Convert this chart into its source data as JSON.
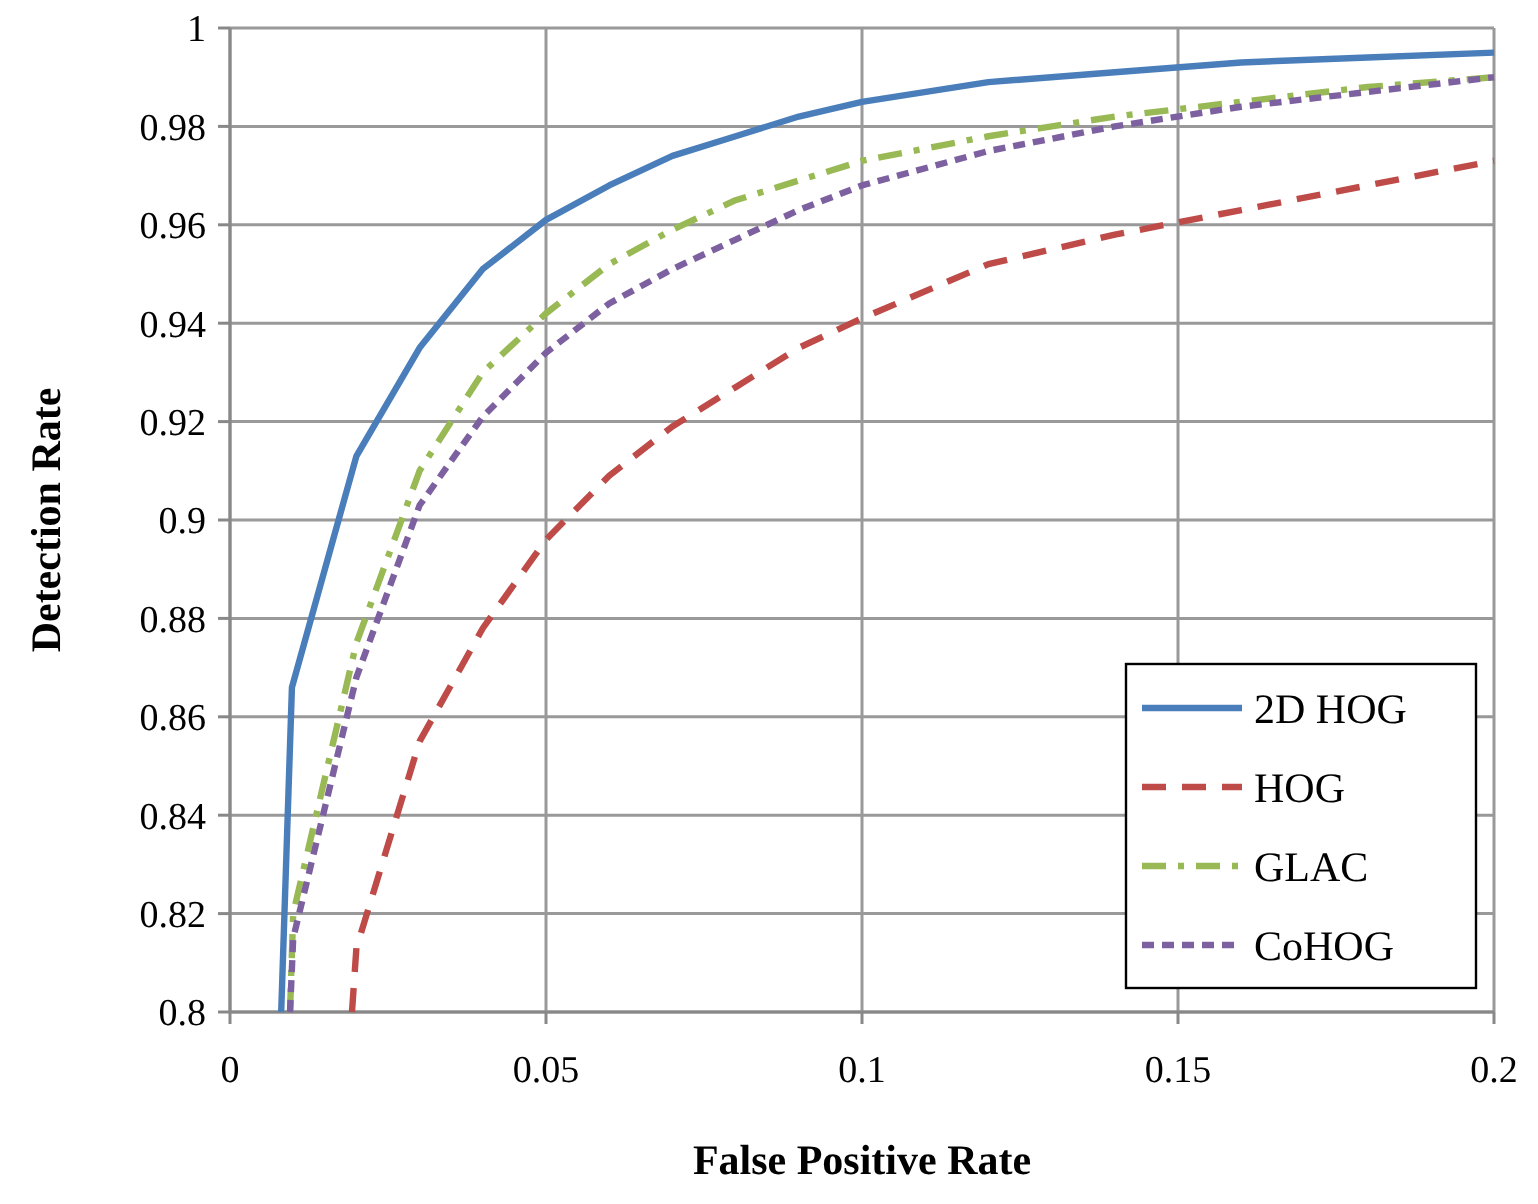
{
  "chart_data": {
    "type": "line",
    "xlabel": "False Positive Rate",
    "ylabel": "Detection Rate",
    "xlim": [
      0,
      0.2
    ],
    "xticks": [
      0,
      0.05,
      0.1,
      0.15,
      0.2
    ],
    "ylim": [
      0.8,
      1
    ],
    "yticks": [
      0.8,
      0.82,
      0.84,
      0.86,
      0.88,
      0.9,
      0.92,
      0.94,
      0.96,
      0.98,
      1
    ],
    "grid": true,
    "legend": "bottom right",
    "marker": "none",
    "series": [
      {
        "name": "2D HOG",
        "color": "#4a7ebb",
        "line_style": "solid",
        "x": [
          0.0081,
          0.0098,
          0.02,
          0.03,
          0.04,
          0.05,
          0.06,
          0.07,
          0.08,
          0.09,
          0.1,
          0.12,
          0.14,
          0.16,
          0.18,
          0.2
        ],
        "values": [
          0.8,
          0.866,
          0.913,
          0.935,
          0.951,
          0.961,
          0.968,
          0.974,
          0.978,
          0.982,
          0.985,
          0.989,
          0.991,
          0.993,
          0.994,
          0.995
        ]
      },
      {
        "name": "HOG",
        "color": "#be4b48",
        "line_style": "dashed",
        "x": [
          0.0193,
          0.02,
          0.03,
          0.04,
          0.05,
          0.06,
          0.07,
          0.08,
          0.09,
          0.1,
          0.12,
          0.14,
          0.16,
          0.18,
          0.2
        ],
        "values": [
          0.8,
          0.813,
          0.855,
          0.878,
          0.896,
          0.909,
          0.919,
          0.927,
          0.935,
          0.941,
          0.952,
          0.958,
          0.963,
          0.968,
          0.973
        ]
      },
      {
        "name": "GLAC",
        "color": "#98b954",
        "line_style": "dashdot",
        "x": [
          0.0095,
          0.01,
          0.02,
          0.03,
          0.04,
          0.05,
          0.06,
          0.07,
          0.08,
          0.09,
          0.1,
          0.12,
          0.14,
          0.16,
          0.18,
          0.2
        ],
        "values": [
          0.8,
          0.82,
          0.875,
          0.91,
          0.93,
          0.942,
          0.952,
          0.959,
          0.965,
          0.969,
          0.973,
          0.978,
          0.982,
          0.985,
          0.988,
          0.99
        ]
      },
      {
        "name": "CoHOG",
        "color": "#7d60a0",
        "line_style": "dotted",
        "x": [
          0.0095,
          0.01,
          0.02,
          0.03,
          0.04,
          0.05,
          0.06,
          0.07,
          0.08,
          0.09,
          0.1,
          0.12,
          0.14,
          0.16,
          0.18,
          0.2
        ],
        "values": [
          0.8,
          0.815,
          0.868,
          0.903,
          0.921,
          0.934,
          0.944,
          0.951,
          0.957,
          0.963,
          0.968,
          0.975,
          0.98,
          0.984,
          0.987,
          0.99
        ]
      }
    ]
  }
}
